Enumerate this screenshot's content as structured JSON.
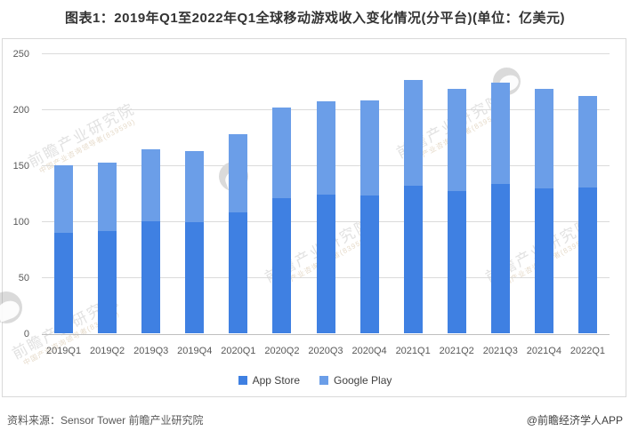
{
  "title": "图表1：2019年Q1至2022年Q1全球移动游戏收入变化情况(分平台)(单位：亿美元)",
  "chart_data": {
    "type": "bar",
    "stacked": true,
    "title": "图表1：2019年Q1至2022年Q1全球移动游戏收入变化情况(分平台)(单位：亿美元)",
    "unit": "亿美元",
    "categories": [
      "2019Q1",
      "2019Q2",
      "2019Q3",
      "2019Q4",
      "2020Q1",
      "2020Q2",
      "2020Q3",
      "2020Q4",
      "2021Q1",
      "2021Q2",
      "2021Q3",
      "2021Q4",
      "2022Q1"
    ],
    "series": [
      {
        "name": "App Store",
        "color": "#3f80e2",
        "values": [
          90,
          91,
          100,
          99,
          108,
          121,
          124,
          123,
          132,
          127,
          133,
          129,
          130
        ]
      },
      {
        "name": "Google Play",
        "color": "#6b9ee8",
        "values": [
          60,
          61,
          64,
          64,
          70,
          81,
          83,
          85,
          94,
          91,
          91,
          89,
          82
        ]
      }
    ],
    "totals": [
      150,
      152,
      164,
      163,
      178,
      202,
      207,
      208,
      226,
      218,
      224,
      218,
      212
    ],
    "ylim": [
      0,
      250
    ],
    "yticks": [
      0,
      50,
      100,
      150,
      200,
      250
    ],
    "grid": true,
    "legend_position": "bottom"
  },
  "colors": {
    "app_store": "#3f80e2",
    "google_play": "#6b9ee8",
    "gridline": "#dbdbdb",
    "axis": "#bfbfbf",
    "tick_text": "#595959",
    "title_text": "#333333"
  },
  "footer": {
    "source": "资料来源：Sensor Tower 前瞻产业研究院",
    "credit": "@前瞻经济学人APP"
  },
  "watermark": {
    "main": "前瞻产业研究院",
    "sub": "中国产业咨询领导者(839599)"
  }
}
